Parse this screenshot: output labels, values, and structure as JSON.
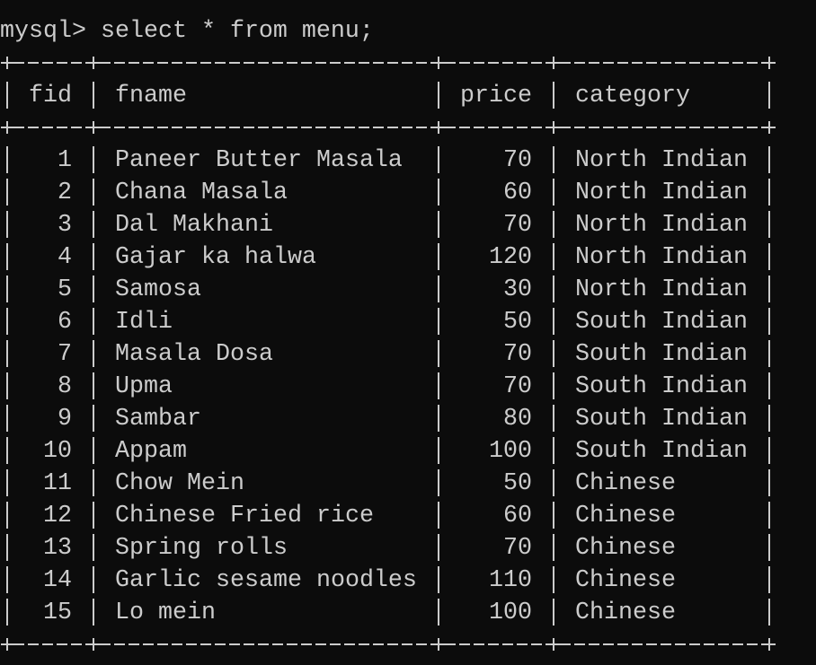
{
  "prompt": "mysql> select * from menu;",
  "table": {
    "columns": [
      "fid",
      "fname",
      "price",
      "category"
    ],
    "rows": [
      [
        1,
        "Paneer Butter Masala",
        70,
        "North Indian"
      ],
      [
        2,
        "Chana Masala",
        60,
        "North Indian"
      ],
      [
        3,
        "Dal Makhani",
        70,
        "North Indian"
      ],
      [
        4,
        "Gajar ka halwa",
        120,
        "North Indian"
      ],
      [
        5,
        "Samosa",
        30,
        "North Indian"
      ],
      [
        6,
        "Idli",
        50,
        "South Indian"
      ],
      [
        7,
        "Masala Dosa",
        70,
        "South Indian"
      ],
      [
        8,
        "Upma",
        70,
        "South Indian"
      ],
      [
        9,
        "Sambar",
        80,
        "South Indian"
      ],
      [
        10,
        "Appam",
        100,
        "South Indian"
      ],
      [
        11,
        "Chow Mein",
        50,
        "Chinese"
      ],
      [
        12,
        "Chinese Fried rice",
        60,
        "Chinese"
      ],
      [
        13,
        "Spring rolls",
        70,
        "Chinese"
      ],
      [
        14,
        "Garlic sesame noodles",
        110,
        "Chinese"
      ],
      [
        15,
        "Lo mein",
        100,
        "Chinese"
      ]
    ]
  }
}
